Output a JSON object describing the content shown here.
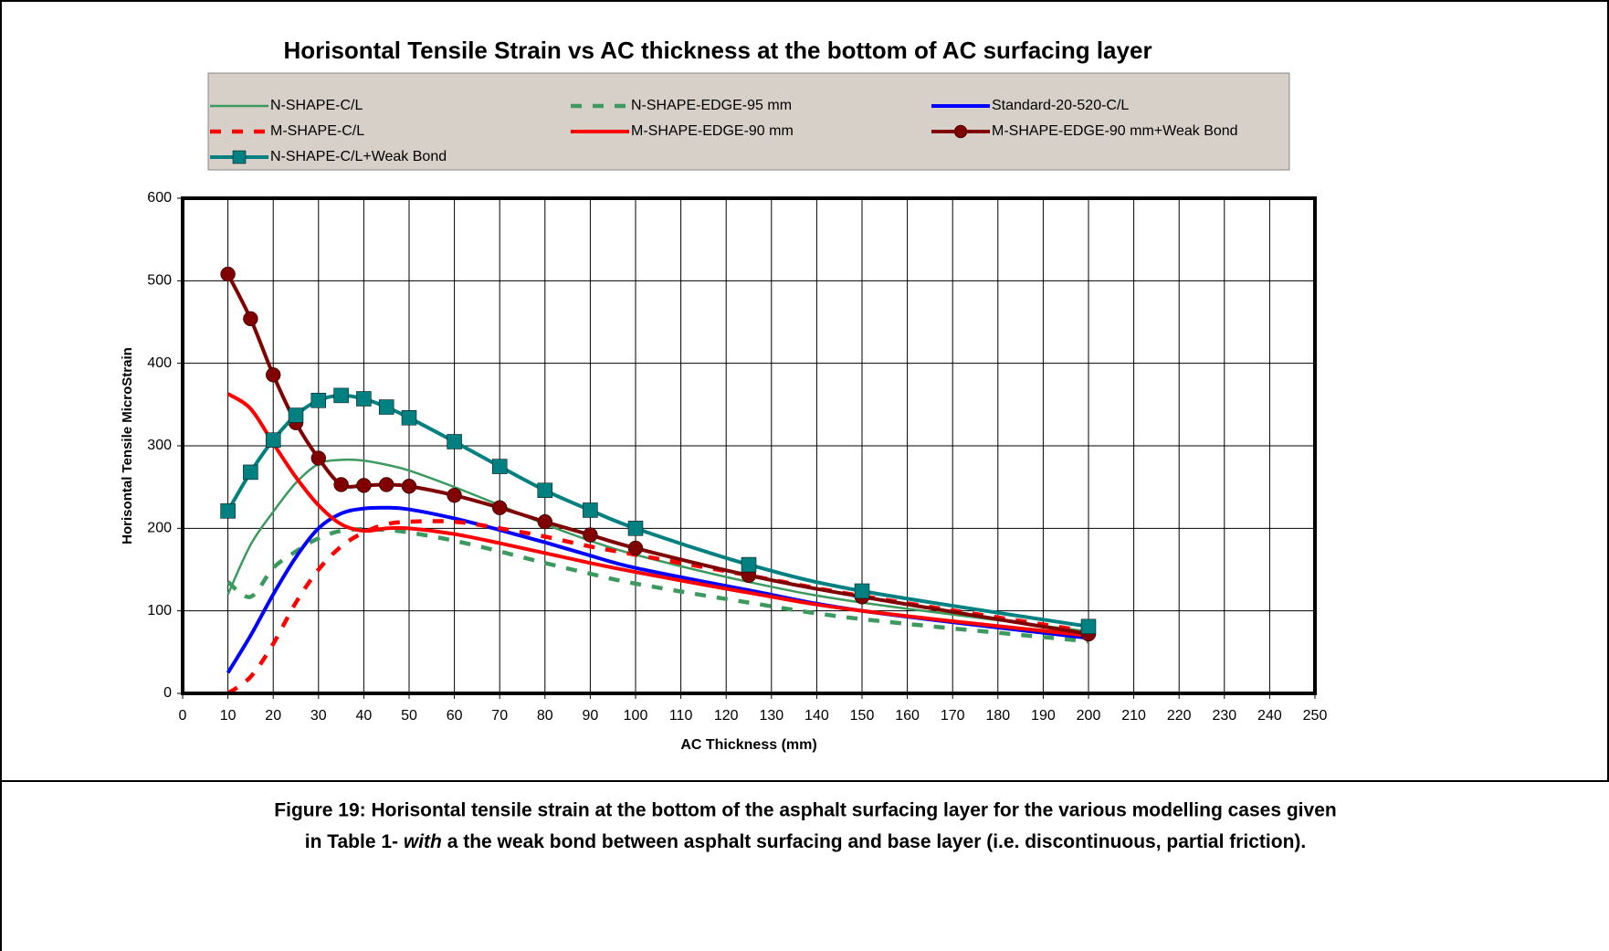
{
  "chart_data": {
    "type": "line",
    "title": "Horisontal Tensile Strain vs AC thickness at the bottom of AC surfacing layer",
    "xlabel": "AC Thickness (mm)",
    "ylabel": "Horisontal Tensile MicroStrain",
    "x": [
      10,
      15,
      20,
      25,
      30,
      35,
      40,
      45,
      50,
      60,
      70,
      80,
      90,
      100,
      125,
      150,
      200
    ],
    "series": [
      {
        "name": "N-SHAPE-C/L",
        "color": "#3c9a5f",
        "style": "solid",
        "values": [
          120,
          180,
          220,
          255,
          278,
          283,
          282,
          277,
          270,
          250,
          228,
          205,
          185,
          168,
          135,
          110,
          75
        ]
      },
      {
        "name": "N-SHAPE-EDGE-95 mm",
        "color": "#3c9a5f",
        "style": "dashed",
        "values": [
          135,
          117,
          152,
          172,
          188,
          197,
          199,
          198,
          195,
          185,
          172,
          158,
          145,
          133,
          110,
          90,
          63
        ]
      },
      {
        "name": "Standard-20-520-C/L",
        "color": "#0000ff",
        "style": "solid",
        "values": [
          25,
          70,
          120,
          165,
          200,
          218,
          224,
          225,
          223,
          212,
          198,
          183,
          167,
          152,
          125,
          100,
          67
        ]
      },
      {
        "name": "M-SHAPE-C/L",
        "color": "#ff0000",
        "style": "dashed",
        "values": [
          0,
          20,
          60,
          110,
          150,
          178,
          195,
          205,
          208,
          208,
          200,
          190,
          178,
          168,
          143,
          118,
          75
        ]
      },
      {
        "name": "M-SHAPE-EDGE-90 mm",
        "color": "#ff0000",
        "style": "solid",
        "values": [
          363,
          345,
          303,
          262,
          228,
          205,
          197,
          200,
          200,
          193,
          182,
          170,
          158,
          147,
          122,
          100,
          70
        ]
      },
      {
        "name": "M-SHAPE-EDGE-90 mm+Weak Bond",
        "color": "#800000",
        "style": "solid",
        "marker": "circle",
        "values": [
          508,
          454,
          386,
          328,
          285,
          253,
          252,
          253,
          251,
          240,
          225,
          208,
          192,
          176,
          143,
          117,
          72
        ]
      },
      {
        "name": "N-SHAPE-C/L+Weak Bond",
        "color": "#008080",
        "style": "solid",
        "marker": "square",
        "values": [
          221,
          268,
          307,
          337,
          355,
          361,
          357,
          347,
          334,
          305,
          275,
          246,
          222,
          200,
          156,
          124,
          81
        ]
      }
    ],
    "xlim": [
      0,
      250
    ],
    "xticks": [
      0,
      10,
      20,
      30,
      40,
      50,
      60,
      70,
      80,
      90,
      100,
      110,
      120,
      130,
      140,
      150,
      160,
      170,
      180,
      190,
      200,
      210,
      220,
      230,
      240,
      250
    ],
    "ylim": [
      0,
      600
    ],
    "yticks": [
      0,
      100,
      200,
      300,
      400,
      500,
      600
    ],
    "grid": true,
    "legend": "top"
  },
  "caption": {
    "line1": "Figure 19:  Horisontal tensile strain at the bottom of the asphalt surfacing layer for the various modelling cases given",
    "line2_start": "in Table 1- ",
    "emphasis": "with",
    "line2_end": "  a the weak bond between asphalt surfacing and base layer (i.e. discontinuous, partial friction)."
  }
}
